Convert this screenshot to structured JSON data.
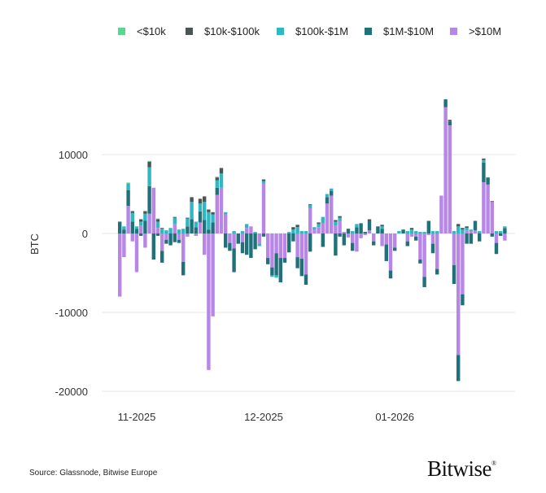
{
  "chart_data": {
    "type": "bar",
    "stacked": "diverging",
    "ylabel": "BTC",
    "ylim": [
      -22000,
      18000
    ],
    "yticks": [
      10000,
      0,
      -10000,
      -20000
    ],
    "ytick_labels": [
      "10000",
      "0",
      "-10000",
      "-20000"
    ],
    "xtick_dates": [
      "2025-11-01",
      "2025-12-01",
      "2026-01-01"
    ],
    "xtick_labels": [
      "11-2025",
      "12-2025",
      "01-2026"
    ],
    "grid": "horizontal",
    "legend_position": "top",
    "series": [
      {
        "name": "<$10k",
        "color": "#55d98f"
      },
      {
        "name": "$10k-$100k",
        "color": "#4b5553"
      },
      {
        "name": "$100k-$1M",
        "color": "#2fb8c3"
      },
      {
        "name": "$1M-$10M",
        "color": "#21717a"
      },
      {
        "name": ">$10M",
        "color": "#b786e6"
      }
    ],
    "rows_columns": [
      "date",
      "<$10k",
      "$10k-$100k",
      "$100k-$1M",
      "$1M-$10M",
      ">$10M"
    ],
    "rows": [
      [
        "2025-10-28",
        0,
        0,
        0,
        1500,
        -8000
      ],
      [
        "2025-10-29",
        0,
        0,
        400,
        500,
        -3000
      ],
      [
        "2025-10-30",
        100,
        0,
        850,
        2000,
        3500
      ],
      [
        "2025-10-31",
        100,
        200,
        1100,
        1500,
        -1000
      ],
      [
        "2025-11-01",
        0,
        0,
        300,
        600,
        -4900
      ],
      [
        "2025-11-02",
        0,
        300,
        500,
        -300,
        1000
      ],
      [
        "2025-11-03",
        100,
        300,
        900,
        1600,
        -1800
      ],
      [
        "2025-11-04",
        100,
        700,
        2400,
        3500,
        2500
      ],
      [
        "2025-11-05",
        0,
        0,
        0,
        -3300,
        5800
      ],
      [
        "2025-11-06",
        100,
        300,
        800,
        -300,
        700
      ],
      [
        "2025-11-07",
        0,
        100,
        600,
        -1500,
        -2200
      ],
      [
        "2025-11-08",
        0,
        0,
        400,
        -500,
        -800
      ],
      [
        "2025-11-09",
        0,
        0,
        700,
        -1500,
        0
      ],
      [
        "2025-11-10",
        0,
        100,
        800,
        -1100,
        1200
      ],
      [
        "2025-11-11",
        0,
        0,
        500,
        -400,
        -800
      ],
      [
        "2025-11-12",
        0,
        0,
        600,
        -1700,
        -3600
      ],
      [
        "2025-11-13",
        0,
        100,
        1000,
        900,
        -400
      ],
      [
        "2025-11-14",
        0,
        600,
        2200,
        1800,
        0
      ],
      [
        "2025-11-15",
        0,
        0,
        700,
        800,
        -300
      ],
      [
        "2025-11-16",
        0,
        600,
        1000,
        1400,
        1400
      ],
      [
        "2025-11-17",
        0,
        700,
        2300,
        1700,
        -2700
      ],
      [
        "2025-11-18",
        100,
        300,
        2200,
        500,
        -17300
      ],
      [
        "2025-11-19",
        0,
        300,
        1000,
        1400,
        -10500
      ],
      [
        "2025-11-20",
        100,
        350,
        950,
        900,
        4900
      ],
      [
        "2025-11-21",
        0,
        700,
        1800,
        0,
        5800
      ],
      [
        "2025-11-22",
        0,
        0,
        300,
        -1800,
        2400
      ],
      [
        "2025-11-23",
        0,
        0,
        0,
        -1000,
        -1200
      ],
      [
        "2025-11-24",
        0,
        0,
        300,
        -3000,
        -1900
      ],
      [
        "2025-11-25",
        0,
        0,
        0,
        -1300,
        0
      ],
      [
        "2025-11-26",
        0,
        0,
        300,
        -1400,
        -1100
      ],
      [
        "2025-11-27",
        0,
        0,
        500,
        -2700,
        700
      ],
      [
        "2025-11-28",
        0,
        0,
        0,
        -3100,
        900
      ],
      [
        "2025-11-29",
        0,
        0,
        200,
        -2000,
        0
      ],
      [
        "2025-11-30",
        0,
        0,
        -300,
        0,
        -1300
      ],
      [
        "2025-12-01",
        0,
        200,
        350,
        -400,
        6300
      ],
      [
        "2025-12-02",
        0,
        0,
        0,
        -800,
        -3100
      ],
      [
        "2025-12-03",
        0,
        0,
        -200,
        -1000,
        -4300
      ],
      [
        "2025-12-04",
        0,
        0,
        -300,
        -2800,
        -2500
      ],
      [
        "2025-12-05",
        0,
        0,
        0,
        -3100,
        -3100
      ],
      [
        "2025-12-06",
        0,
        0,
        0,
        -600,
        -3100
      ],
      [
        "2025-12-07",
        0,
        0,
        200,
        -2400,
        0
      ],
      [
        "2025-12-08",
        0,
        300,
        500,
        -1000,
        0
      ],
      [
        "2025-12-09",
        0,
        300,
        800,
        -1400,
        -3000
      ],
      [
        "2025-12-10",
        0,
        0,
        300,
        -2200,
        -3200
      ],
      [
        "2025-12-11",
        0,
        0,
        300,
        -1300,
        -5200
      ],
      [
        "2025-12-12",
        0,
        100,
        400,
        -2300,
        3200
      ],
      [
        "2025-12-13",
        0,
        0,
        300,
        0,
        500
      ],
      [
        "2025-12-14",
        0,
        200,
        400,
        0,
        800
      ],
      [
        "2025-12-15",
        0,
        0,
        800,
        -1700,
        1300
      ],
      [
        "2025-12-16",
        0,
        0,
        400,
        800,
        3800
      ],
      [
        "2025-12-17",
        0,
        0,
        300,
        600,
        4800
      ],
      [
        "2025-12-18",
        0,
        200,
        500,
        -2800,
        1000
      ],
      [
        "2025-12-19",
        0,
        200,
        400,
        -400,
        1600
      ],
      [
        "2025-12-20",
        0,
        0,
        0,
        -1500,
        200
      ],
      [
        "2025-12-21",
        0,
        0,
        0,
        600,
        -500
      ],
      [
        "2025-12-22",
        0,
        0,
        300,
        -1000,
        -1200
      ],
      [
        "2025-12-23",
        0,
        0,
        400,
        800,
        -2300
      ],
      [
        "2025-12-24",
        0,
        0,
        0,
        1300,
        -600
      ],
      [
        "2025-12-25",
        0,
        0,
        0,
        200,
        -200
      ],
      [
        "2025-12-26",
        0,
        200,
        0,
        1200,
        400
      ],
      [
        "2025-12-27",
        0,
        0,
        0,
        -500,
        -1000
      ],
      [
        "2025-12-28",
        0,
        0,
        0,
        900,
        0
      ],
      [
        "2025-12-29",
        0,
        200,
        300,
        600,
        -1600
      ],
      [
        "2025-12-30",
        0,
        0,
        0,
        -2100,
        -1400
      ],
      [
        "2025-12-31",
        0,
        0,
        0,
        -1000,
        -4700
      ],
      [
        "2026-01-01",
        0,
        0,
        0,
        -400,
        -1800
      ],
      [
        "2026-01-02",
        0,
        0,
        300,
        0,
        0
      ],
      [
        "2026-01-03",
        0,
        0,
        0,
        500,
        0
      ],
      [
        "2026-01-04",
        0,
        0,
        300,
        -600,
        -1000
      ],
      [
        "2026-01-05",
        0,
        200,
        500,
        0,
        -400
      ],
      [
        "2026-01-06",
        0,
        0,
        300,
        -500,
        -400
      ],
      [
        "2026-01-07",
        0,
        0,
        200,
        -500,
        -3300
      ],
      [
        "2026-01-08",
        0,
        0,
        200,
        -1300,
        -5500
      ],
      [
        "2026-01-09",
        0,
        0,
        0,
        1600,
        -200
      ],
      [
        "2026-01-10",
        0,
        0,
        300,
        -1200,
        -1300
      ],
      [
        "2026-01-11",
        0,
        0,
        300,
        -700,
        -4500
      ],
      [
        "2026-01-12",
        0,
        0,
        0,
        0,
        4800
      ],
      [
        "2026-01-13",
        0,
        0,
        0,
        1000,
        16000
      ],
      [
        "2026-01-14",
        0,
        200,
        0,
        500,
        13700
      ],
      [
        "2026-01-15",
        0,
        0,
        300,
        -2400,
        -4000
      ],
      [
        "2026-01-16",
        0,
        300,
        900,
        -3300,
        -15400
      ],
      [
        "2026-01-17",
        0,
        200,
        500,
        -1400,
        -7700
      ],
      [
        "2026-01-18",
        0,
        200,
        300,
        -1300,
        400
      ],
      [
        "2026-01-19",
        0,
        0,
        200,
        -1300,
        300
      ],
      [
        "2026-01-20",
        0,
        0,
        0,
        1200,
        400
      ],
      [
        "2026-01-21",
        0,
        0,
        300,
        -1000,
        0
      ],
      [
        "2026-01-22",
        0,
        200,
        300,
        2500,
        6500
      ],
      [
        "2026-01-23",
        0,
        0,
        0,
        900,
        6200
      ],
      [
        "2026-01-24",
        0,
        100,
        0,
        -400,
        4000
      ],
      [
        "2026-01-25",
        0,
        0,
        300,
        -1400,
        -1200
      ],
      [
        "2026-01-26",
        0,
        0,
        300,
        -300,
        0
      ],
      [
        "2026-01-27",
        0,
        0,
        200,
        700,
        -900
      ]
    ]
  },
  "footer": {
    "source": "Source: Glassnode, Bitwise Europe",
    "logo": "Bitwise"
  }
}
